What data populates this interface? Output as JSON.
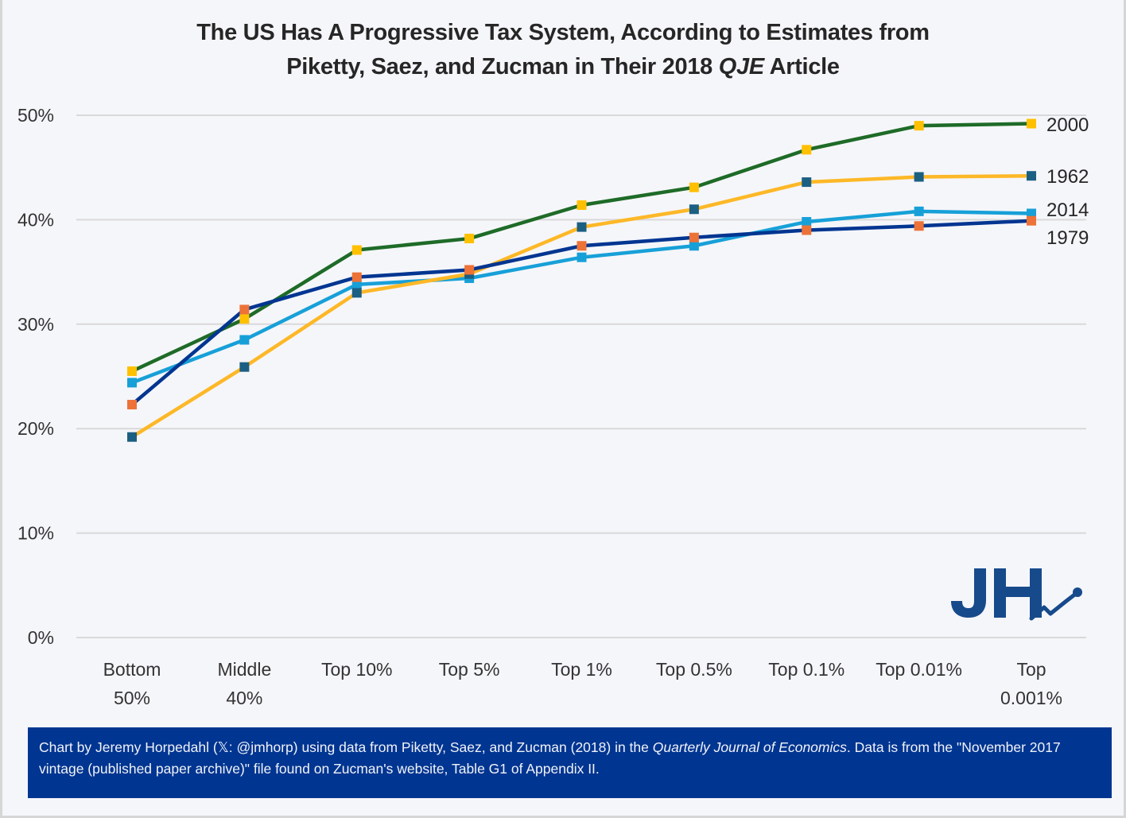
{
  "chart_data": {
    "type": "line",
    "title_line1": "The US Has A Progressive Tax System, According to Estimates from",
    "title_line2_pre": "Piketty, Saez, and Zucman in Their 2018 ",
    "title_line2_italic": "QJE",
    "title_line2_post": " Article",
    "xlabel": "",
    "ylabel": "",
    "ylim": [
      0,
      50
    ],
    "yticks": [
      0,
      10,
      20,
      30,
      40,
      50
    ],
    "ytick_labels": [
      "0%",
      "10%",
      "20%",
      "30%",
      "40%",
      "50%"
    ],
    "grid": "horizontal",
    "categories": [
      [
        "Bottom",
        "50%"
      ],
      [
        "Middle",
        "40%"
      ],
      [
        "Top 10%"
      ],
      [
        "Top 5%"
      ],
      [
        "Top 1%"
      ],
      [
        "Top 0.5%"
      ],
      [
        "Top 0.1%"
      ],
      [
        "Top 0.01%"
      ],
      [
        "Top",
        "0.001%"
      ]
    ],
    "legend": "end-of-line labels (right)",
    "series": [
      {
        "name": "2000",
        "line_color": "#1e6b28",
        "marker_color": "#ffc000",
        "values": [
          25.5,
          30.5,
          37.1,
          38.2,
          41.4,
          43.1,
          46.7,
          49.0,
          49.2
        ]
      },
      {
        "name": "1962",
        "line_color": "#fdb827",
        "marker_color": "#1b5f82",
        "values": [
          19.2,
          25.9,
          33.0,
          34.8,
          39.3,
          41.0,
          43.6,
          44.1,
          44.2
        ]
      },
      {
        "name": "2014",
        "line_color": "#17a0d8",
        "marker_color": "#17a0d8",
        "values": [
          24.4,
          28.5,
          33.8,
          34.4,
          36.4,
          37.5,
          39.8,
          40.8,
          40.6
        ]
      },
      {
        "name": "1979",
        "line_color": "#003591",
        "marker_color": "#ed7237",
        "values": [
          22.3,
          31.4,
          34.5,
          35.2,
          37.5,
          38.3,
          39.0,
          39.4,
          39.9
        ]
      }
    ],
    "end_labels": [
      {
        "series": "2000",
        "text": "2000"
      },
      {
        "series": "1962",
        "text": "1962"
      },
      {
        "series": "2014",
        "text": "2014"
      },
      {
        "series": "1979",
        "text": "1979"
      }
    ]
  },
  "logo": {
    "text": "JH",
    "color": "#174a8b"
  },
  "footer": {
    "part1": "Chart by Jeremy Horpedahl (𝕏: @jmhorp) using data from Piketty, Saez, and Zucman (2018) in the ",
    "italic": "Quarterly Journal of Economics",
    "part2": ". Data is from the \"November 2017 vintage (published paper archive)\" file found on Zucman's website, Table G1 of Appendix II.",
    "background": "#003591"
  }
}
